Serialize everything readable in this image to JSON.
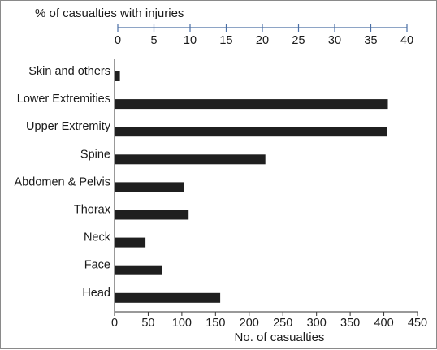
{
  "chart_data": {
    "type": "bar",
    "orientation": "horizontal",
    "categories": [
      "Skin and others",
      "Lower Extremities",
      "Upper Extremity",
      "Spine",
      "Abdomen & Pelvis",
      "Thorax",
      "Neck",
      "Face",
      "Head"
    ],
    "values": [
      8,
      406,
      405,
      224,
      103,
      110,
      46,
      71,
      157
    ],
    "bar_color": "#1f1f1f",
    "xlabel": "No. of casualties",
    "xlim": [
      0,
      450
    ],
    "xticks": [
      "0",
      "50",
      "100",
      "150",
      "200",
      "250",
      "300",
      "350",
      "400",
      "450"
    ],
    "top_axis": {
      "label": "% of casualties with injuries",
      "range": [
        0,
        40
      ],
      "ticks": [
        "0",
        "5",
        "10",
        "15",
        "20",
        "25",
        "30",
        "35",
        "40"
      ],
      "color": "#4a6fa5"
    },
    "grid": false,
    "legend": "none"
  }
}
